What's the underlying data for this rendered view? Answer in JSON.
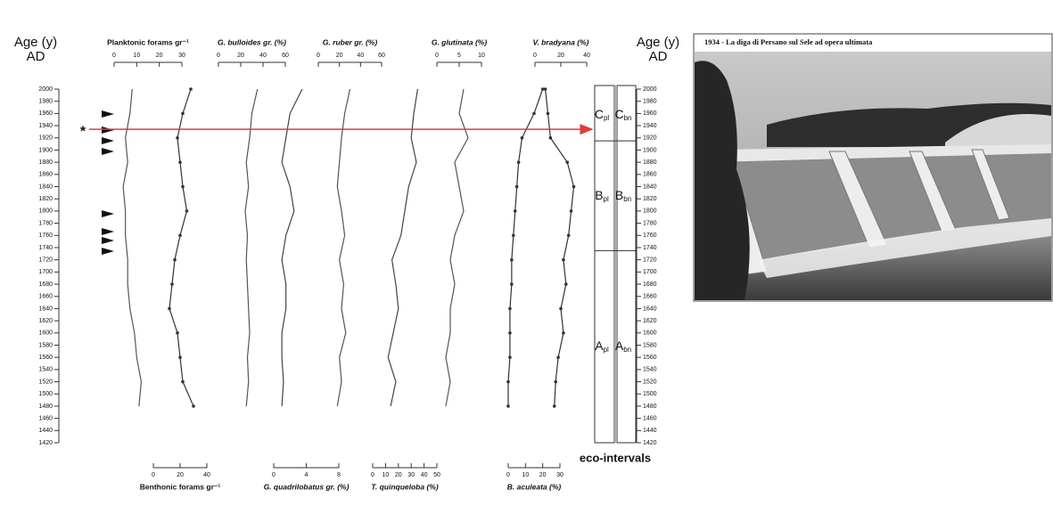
{
  "chart_data": {
    "type": "line",
    "y_label": "Age (y)",
    "y_unit": "AD",
    "eco_label": "eco-intervals",
    "ylim": [
      2000,
      1420
    ],
    "yticks": [
      2000,
      1980,
      1960,
      1940,
      1920,
      1900,
      1880,
      1860,
      1840,
      1820,
      1800,
      1780,
      1760,
      1740,
      1720,
      1700,
      1680,
      1660,
      1640,
      1620,
      1600,
      1580,
      1560,
      1540,
      1520,
      1500,
      1480,
      1460,
      1440,
      1420
    ],
    "ages": [
      2000,
      1960,
      1920,
      1880,
      1840,
      1800,
      1760,
      1720,
      1680,
      1640,
      1600,
      1560,
      1520,
      1480
    ],
    "marker_age": 1934,
    "marker_symbol": "*",
    "series": [
      {
        "name": "Planktonic forams gr⁻¹",
        "axis": "top",
        "italic": false,
        "markers": false,
        "color": "#555",
        "xlim": [
          0,
          30
        ],
        "xticks": [
          0,
          10,
          20,
          30
        ],
        "values": [
          8,
          7,
          5,
          6,
          4,
          5,
          5,
          6,
          6,
          7,
          9,
          10,
          12,
          11
        ]
      },
      {
        "name": "Benthonic forams gr⁻¹",
        "axis": "bottom",
        "italic": false,
        "markers": true,
        "color": "#333",
        "xlim": [
          0,
          40
        ],
        "xticks": [
          0,
          20,
          40
        ],
        "values": [
          28,
          22,
          18,
          20,
          22,
          25,
          20,
          16,
          14,
          12,
          18,
          20,
          22,
          30
        ]
      },
      {
        "name": "G. bulloides gr. (%)",
        "axis": "top",
        "italic": true,
        "markers": false,
        "color": "#555",
        "xlim": [
          0,
          60
        ],
        "xticks": [
          0,
          20,
          40,
          60
        ],
        "values": [
          35,
          30,
          28,
          25,
          27,
          24,
          26,
          25,
          26,
          27,
          28,
          26,
          27,
          25
        ]
      },
      {
        "name": "G. quadrilobatus gr. (%)",
        "axis": "bottom",
        "italic": true,
        "markers": false,
        "color": "#444",
        "xlim": [
          0,
          8
        ],
        "xticks": [
          0,
          4,
          8
        ],
        "values": [
          3.5,
          2,
          1.5,
          1,
          2,
          2.5,
          1.5,
          1,
          1.5,
          1.5,
          1,
          1,
          1.2,
          1
        ]
      },
      {
        "name": "G. ruber gr. (%)",
        "axis": "top",
        "italic": true,
        "markers": false,
        "color": "#555",
        "xlim": [
          0,
          60
        ],
        "xticks": [
          0,
          20,
          40,
          60
        ],
        "values": [
          30,
          25,
          22,
          20,
          18,
          22,
          25,
          20,
          24,
          22,
          26,
          20,
          22,
          18
        ]
      },
      {
        "name": "T. quinqueloba (%)",
        "axis": "bottom",
        "italic": true,
        "markers": false,
        "color": "#444",
        "xlim": [
          0,
          50
        ],
        "xticks": [
          0,
          10,
          20,
          30,
          40,
          50
        ],
        "values": [
          35,
          32,
          30,
          34,
          28,
          25,
          22,
          15,
          18,
          20,
          16,
          12,
          18,
          14
        ]
      },
      {
        "name": "G. glutinata (%)",
        "axis": "top",
        "italic": true,
        "markers": false,
        "color": "#555",
        "xlim": [
          0,
          10
        ],
        "xticks": [
          0,
          5,
          10
        ],
        "values": [
          6,
          5,
          7,
          4,
          5,
          6,
          4,
          3,
          4,
          3,
          3,
          2,
          3,
          2
        ]
      },
      {
        "name": "B. aculeata (%)",
        "axis": "bottom",
        "italic": true,
        "markers": true,
        "color": "#333",
        "xlim": [
          0,
          30
        ],
        "xticks": [
          0,
          10,
          20,
          30
        ],
        "values": [
          20,
          15,
          8,
          6,
          5,
          4,
          3,
          2,
          2,
          1,
          1,
          1,
          0,
          0
        ]
      },
      {
        "name": "V. bradyana (%)",
        "axis": "top",
        "italic": true,
        "markers": true,
        "color": "#333",
        "xlim": [
          0,
          40
        ],
        "xticks": [
          0,
          20,
          40
        ],
        "values": [
          8,
          10,
          12,
          25,
          30,
          28,
          26,
          22,
          24,
          20,
          22,
          18,
          16,
          15
        ]
      }
    ],
    "eco_intervals": [
      {
        "top": 2000,
        "bottom": 1915,
        "pl": {
          "label": "C",
          "sub": "pl"
        },
        "bn": {
          "label": "C",
          "sub": "bn"
        }
      },
      {
        "top": 1915,
        "bottom": 1735,
        "pl": {
          "label": "B",
          "sub": "pl"
        },
        "bn": {
          "label": "B",
          "sub": "bn"
        }
      },
      {
        "top": 1735,
        "bottom": 1420,
        "pl": {
          "label": "A",
          "sub": "pl"
        },
        "bn": {
          "label": "A",
          "sub": "bn"
        }
      }
    ]
  },
  "photo": {
    "caption": "1934 - La diga di Persano sul Sele ad opera ultimata"
  }
}
